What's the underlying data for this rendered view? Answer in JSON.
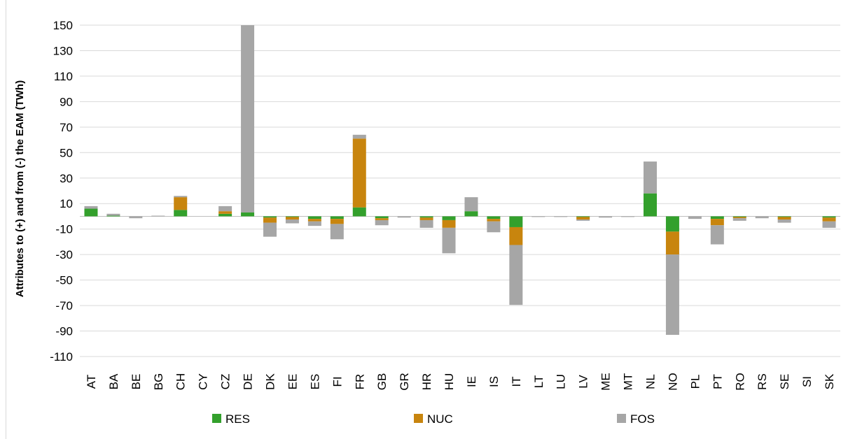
{
  "chart_data": {
    "type": "bar",
    "stacked": true,
    "title": "",
    "xlabel": "",
    "ylabel": "Attributes to (+) and from (-) the EAM (TWh)",
    "ylim": [
      -110,
      150
    ],
    "yticks": [
      150,
      130,
      110,
      90,
      70,
      50,
      30,
      10,
      -10,
      -30,
      -50,
      -70,
      -90,
      -110
    ],
    "grid": true,
    "legend_position": "bottom",
    "categories": [
      "AT",
      "BA",
      "BE",
      "BG",
      "CH",
      "CY",
      "CZ",
      "DE",
      "DK",
      "EE",
      "ES",
      "FI",
      "FR",
      "GB",
      "GR",
      "HR",
      "HU",
      "IE",
      "IS",
      "IT",
      "LT",
      "LU",
      "LV",
      "ME",
      "MT",
      "NL",
      "NO",
      "PL",
      "PT",
      "RO",
      "RS",
      "SE",
      "SI",
      "SK"
    ],
    "series": [
      {
        "name": "RES",
        "color": "#33a02c",
        "values": [
          6,
          0.5,
          0,
          0,
          5,
          0,
          2,
          3,
          -1,
          -0.5,
          -2,
          -2,
          7,
          -1.5,
          0,
          -1,
          -3,
          4,
          -2,
          -8.5,
          0,
          0,
          -0.5,
          0,
          0,
          18,
          -12,
          0,
          -2,
          -0.5,
          0,
          -0.5,
          0,
          -1
        ]
      },
      {
        "name": "NUC",
        "color": "#c8850e",
        "values": [
          0,
          0,
          0,
          0,
          10,
          0,
          2,
          0,
          -4,
          -2,
          -2,
          -4,
          54,
          -1.5,
          0,
          -2,
          -6,
          0,
          -2,
          -14,
          0,
          0,
          -2,
          0,
          0,
          0,
          -18,
          0,
          -5,
          -1,
          0,
          -2,
          0,
          -3
        ]
      },
      {
        "name": "FOS",
        "color": "#a6a6a6",
        "values": [
          2,
          1.5,
          -1.5,
          0.5,
          1,
          0,
          4,
          147,
          -11,
          -3,
          -3.5,
          -12,
          3,
          -4,
          -1,
          -6,
          -20,
          11,
          -8.5,
          -47,
          -0.5,
          -0.5,
          -1,
          -1,
          -0.5,
          25,
          -63,
          -2,
          -15,
          -2,
          -1.5,
          -2.5,
          0,
          -5
        ]
      }
    ]
  }
}
